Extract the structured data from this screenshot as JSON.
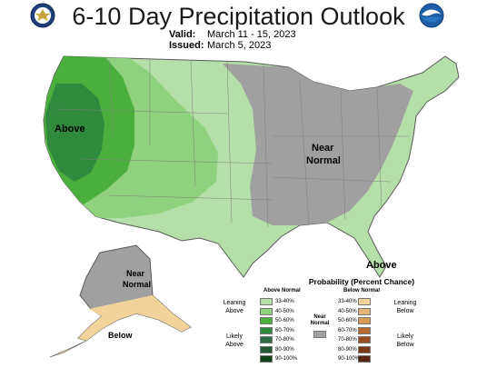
{
  "title": "6-10 Day Precipitation Outlook",
  "valid_label": "Valid:",
  "valid_dates": "March 11 - 15, 2023",
  "issued_label": "Issued:",
  "issued_date": "March 5, 2023",
  "logos": {
    "left": "doc-seal-icon",
    "right": "noaa-logo-icon"
  },
  "map_labels": {
    "west_above": "Above",
    "midwest_near_line1": "Near",
    "midwest_near_line2": "Normal",
    "florida_above": "Above",
    "alaska_near_line1": "Near",
    "alaska_near_line2": "Normal",
    "alaska_below": "Below"
  },
  "colors": {
    "above_33_40": "#b5dfa8",
    "above_40_50": "#8fd17c",
    "above_50_60": "#4aaf3c",
    "above_60_70": "#2f8a3e",
    "near_normal": "#a0a0a0",
    "below_33_40": "#f2d49b"
  },
  "legend": {
    "title": "Probability (Percent Chance)",
    "above_header": "Above Normal",
    "below_header": "Below Normal",
    "above_ranges": [
      "33-40%",
      "40-50%",
      "50-60%",
      "60-70%",
      "70-80%",
      "80-90%",
      "90-100%"
    ],
    "below_ranges": [
      "33-40%",
      "40-50%",
      "50-60%",
      "60-70%",
      "70-80%",
      "80-90%",
      "90-100%"
    ],
    "above_colors": [
      "#b5dfa8",
      "#8fd17c",
      "#4aaf3c",
      "#2f8a3e",
      "#2e6b47",
      "#225a36",
      "#103f1a"
    ],
    "below_colors": [
      "#f2d49b",
      "#e0b472",
      "#d89b52",
      "#b96b2f",
      "#9a4b1c",
      "#7a3a18",
      "#5a2614"
    ],
    "near_label_line1": "Near",
    "near_label_line2": "Normal",
    "near_color": "#a0a0a0",
    "leaning_above_line1": "Leaning",
    "leaning_above_line2": "Above",
    "likely_above_line1": "Likely",
    "likely_above_line2": "Above",
    "leaning_below_line1": "Leaning",
    "leaning_below_line2": "Below",
    "likely_below_line1": "Likely",
    "likely_below_line2": "Below"
  }
}
